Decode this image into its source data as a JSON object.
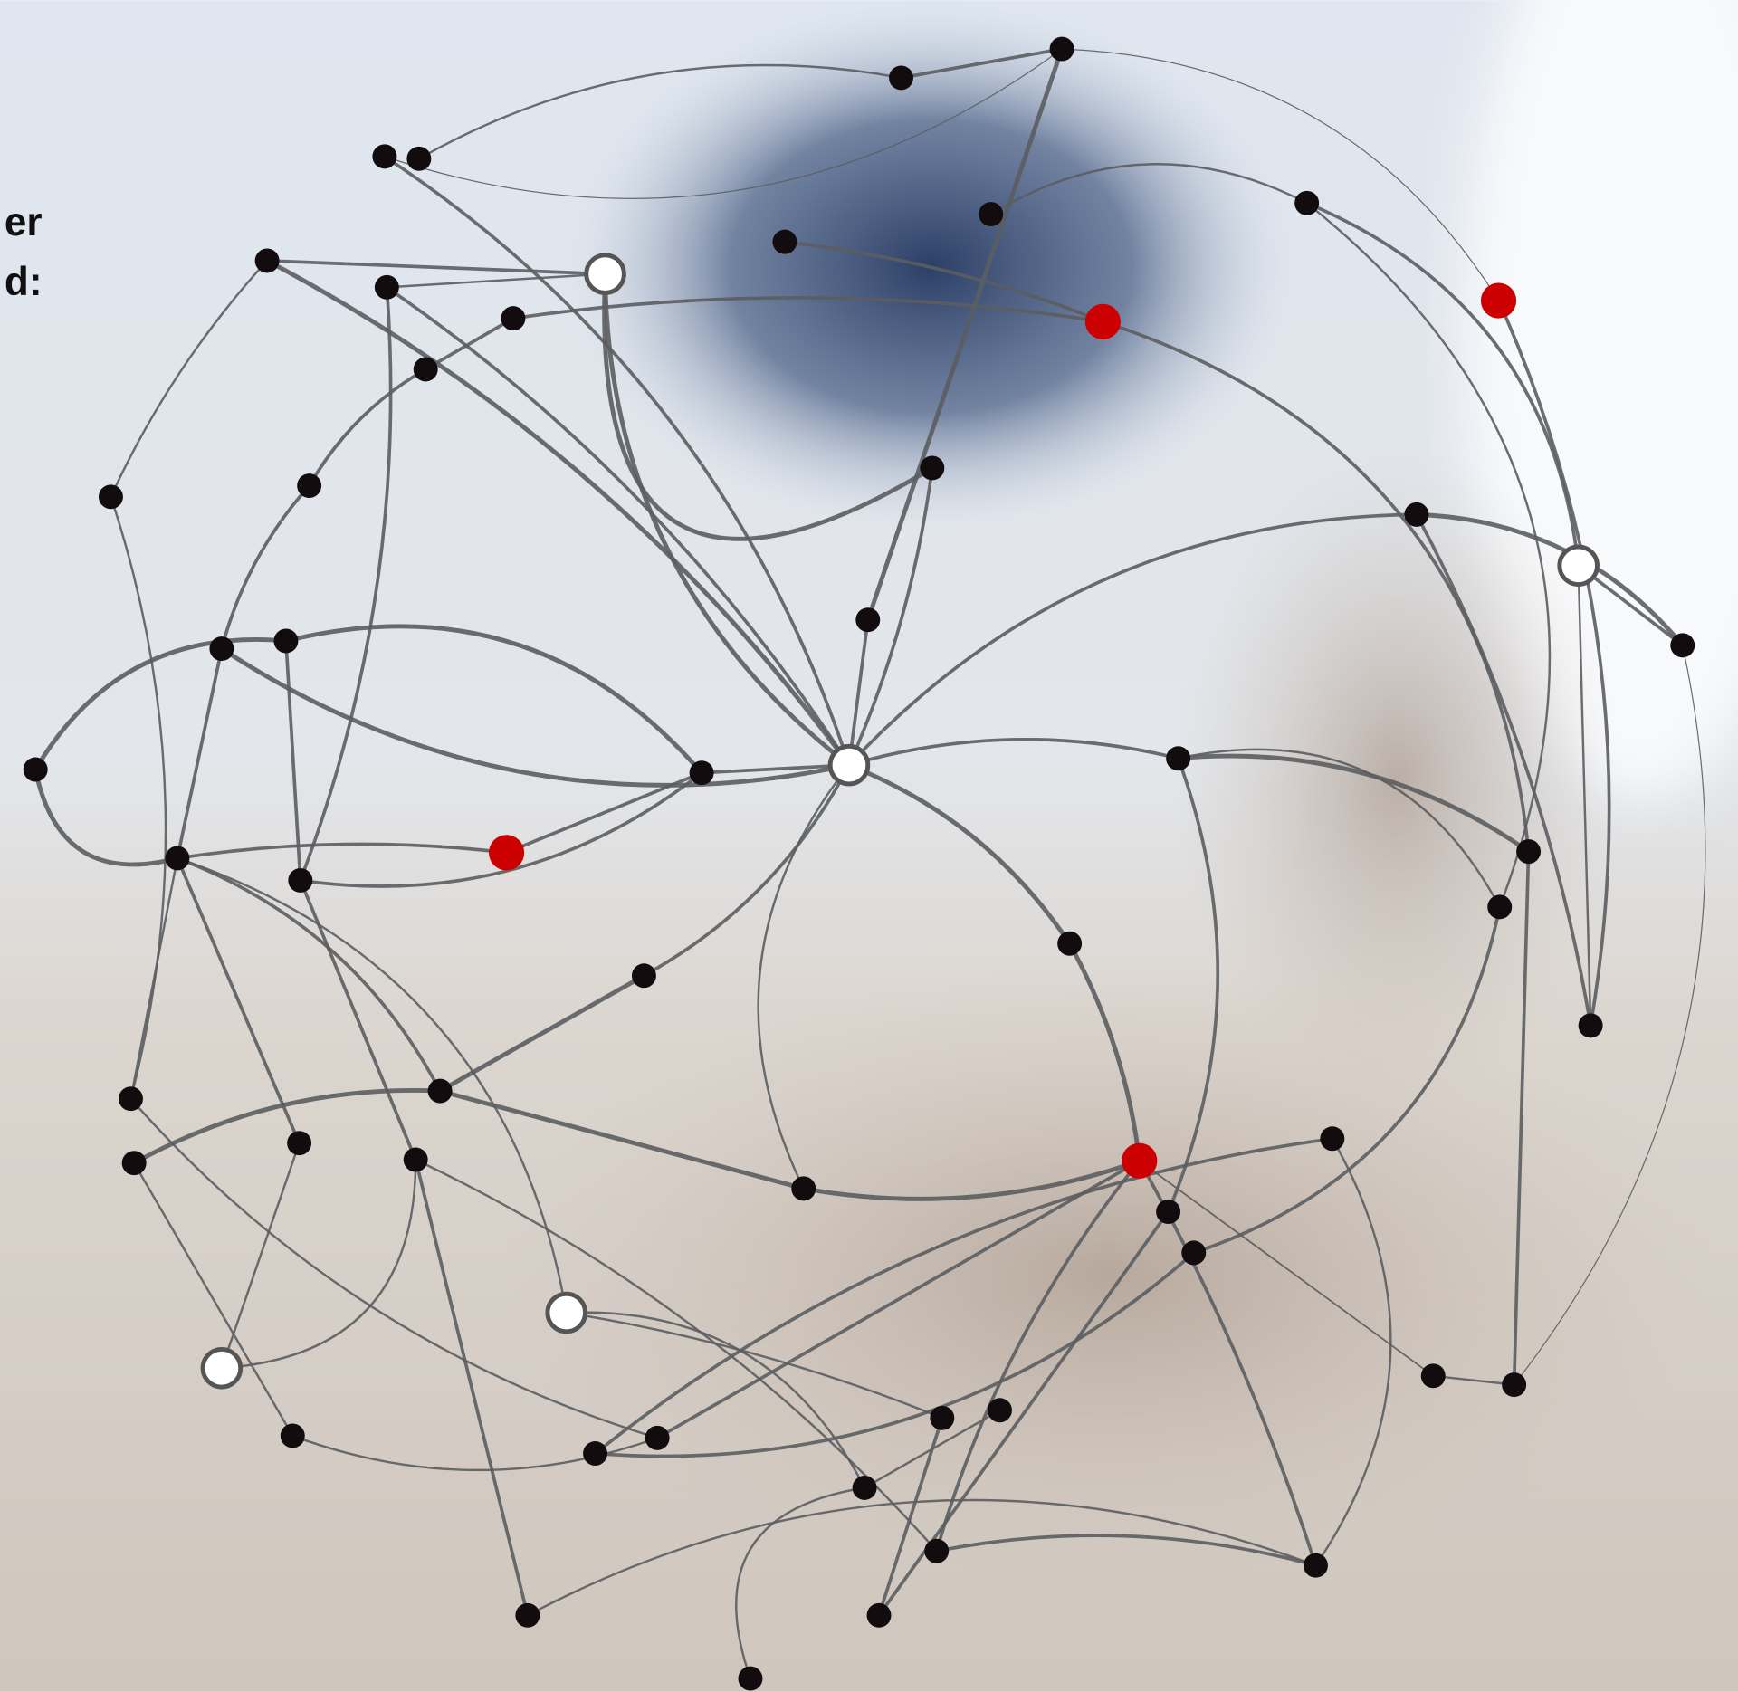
{
  "text_lines": [
    "er",
    "d:"
  ]
}
